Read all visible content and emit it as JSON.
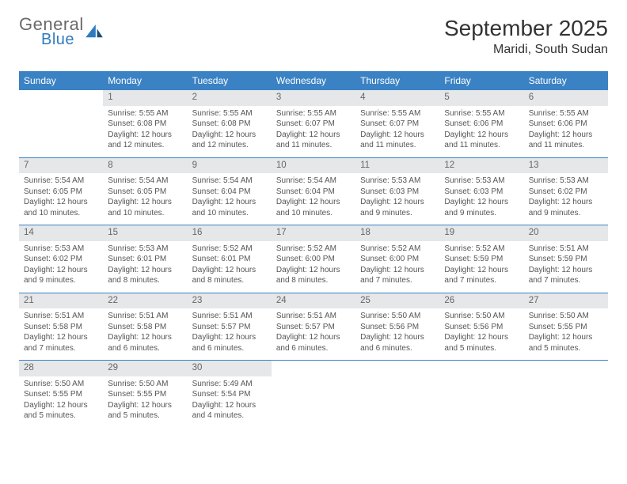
{
  "brand": {
    "line1": "General",
    "line2": "Blue",
    "color1": "#6a6a6a",
    "color2": "#2f7bbf"
  },
  "title": "September 2025",
  "location": "Maridi, South Sudan",
  "colors": {
    "header_bg": "#3b82c4",
    "header_fg": "#ffffff",
    "daynum_bg": "#e5e7e9",
    "rule": "#3b82c4",
    "text": "#555555",
    "page_bg": "#ffffff"
  },
  "typography": {
    "body_pt": 10,
    "title_pt": 28,
    "location_pt": 16,
    "dow_pt": 12
  },
  "layout": {
    "cols": 7,
    "rows": 5,
    "col_width_pct": 14.28
  },
  "dow": [
    "Sunday",
    "Monday",
    "Tuesday",
    "Wednesday",
    "Thursday",
    "Friday",
    "Saturday"
  ],
  "weeks": [
    [
      {
        "n": "",
        "empty": true
      },
      {
        "n": "1",
        "sr": "Sunrise: 5:55 AM",
        "ss": "Sunset: 6:08 PM",
        "dl": "Daylight: 12 hours and 12 minutes."
      },
      {
        "n": "2",
        "sr": "Sunrise: 5:55 AM",
        "ss": "Sunset: 6:08 PM",
        "dl": "Daylight: 12 hours and 12 minutes."
      },
      {
        "n": "3",
        "sr": "Sunrise: 5:55 AM",
        "ss": "Sunset: 6:07 PM",
        "dl": "Daylight: 12 hours and 11 minutes."
      },
      {
        "n": "4",
        "sr": "Sunrise: 5:55 AM",
        "ss": "Sunset: 6:07 PM",
        "dl": "Daylight: 12 hours and 11 minutes."
      },
      {
        "n": "5",
        "sr": "Sunrise: 5:55 AM",
        "ss": "Sunset: 6:06 PM",
        "dl": "Daylight: 12 hours and 11 minutes."
      },
      {
        "n": "6",
        "sr": "Sunrise: 5:55 AM",
        "ss": "Sunset: 6:06 PM",
        "dl": "Daylight: 12 hours and 11 minutes."
      }
    ],
    [
      {
        "n": "7",
        "sr": "Sunrise: 5:54 AM",
        "ss": "Sunset: 6:05 PM",
        "dl": "Daylight: 12 hours and 10 minutes."
      },
      {
        "n": "8",
        "sr": "Sunrise: 5:54 AM",
        "ss": "Sunset: 6:05 PM",
        "dl": "Daylight: 12 hours and 10 minutes."
      },
      {
        "n": "9",
        "sr": "Sunrise: 5:54 AM",
        "ss": "Sunset: 6:04 PM",
        "dl": "Daylight: 12 hours and 10 minutes."
      },
      {
        "n": "10",
        "sr": "Sunrise: 5:54 AM",
        "ss": "Sunset: 6:04 PM",
        "dl": "Daylight: 12 hours and 10 minutes."
      },
      {
        "n": "11",
        "sr": "Sunrise: 5:53 AM",
        "ss": "Sunset: 6:03 PM",
        "dl": "Daylight: 12 hours and 9 minutes."
      },
      {
        "n": "12",
        "sr": "Sunrise: 5:53 AM",
        "ss": "Sunset: 6:03 PM",
        "dl": "Daylight: 12 hours and 9 minutes."
      },
      {
        "n": "13",
        "sr": "Sunrise: 5:53 AM",
        "ss": "Sunset: 6:02 PM",
        "dl": "Daylight: 12 hours and 9 minutes."
      }
    ],
    [
      {
        "n": "14",
        "sr": "Sunrise: 5:53 AM",
        "ss": "Sunset: 6:02 PM",
        "dl": "Daylight: 12 hours and 9 minutes."
      },
      {
        "n": "15",
        "sr": "Sunrise: 5:53 AM",
        "ss": "Sunset: 6:01 PM",
        "dl": "Daylight: 12 hours and 8 minutes."
      },
      {
        "n": "16",
        "sr": "Sunrise: 5:52 AM",
        "ss": "Sunset: 6:01 PM",
        "dl": "Daylight: 12 hours and 8 minutes."
      },
      {
        "n": "17",
        "sr": "Sunrise: 5:52 AM",
        "ss": "Sunset: 6:00 PM",
        "dl": "Daylight: 12 hours and 8 minutes."
      },
      {
        "n": "18",
        "sr": "Sunrise: 5:52 AM",
        "ss": "Sunset: 6:00 PM",
        "dl": "Daylight: 12 hours and 7 minutes."
      },
      {
        "n": "19",
        "sr": "Sunrise: 5:52 AM",
        "ss": "Sunset: 5:59 PM",
        "dl": "Daylight: 12 hours and 7 minutes."
      },
      {
        "n": "20",
        "sr": "Sunrise: 5:51 AM",
        "ss": "Sunset: 5:59 PM",
        "dl": "Daylight: 12 hours and 7 minutes."
      }
    ],
    [
      {
        "n": "21",
        "sr": "Sunrise: 5:51 AM",
        "ss": "Sunset: 5:58 PM",
        "dl": "Daylight: 12 hours and 7 minutes."
      },
      {
        "n": "22",
        "sr": "Sunrise: 5:51 AM",
        "ss": "Sunset: 5:58 PM",
        "dl": "Daylight: 12 hours and 6 minutes."
      },
      {
        "n": "23",
        "sr": "Sunrise: 5:51 AM",
        "ss": "Sunset: 5:57 PM",
        "dl": "Daylight: 12 hours and 6 minutes."
      },
      {
        "n": "24",
        "sr": "Sunrise: 5:51 AM",
        "ss": "Sunset: 5:57 PM",
        "dl": "Daylight: 12 hours and 6 minutes."
      },
      {
        "n": "25",
        "sr": "Sunrise: 5:50 AM",
        "ss": "Sunset: 5:56 PM",
        "dl": "Daylight: 12 hours and 6 minutes."
      },
      {
        "n": "26",
        "sr": "Sunrise: 5:50 AM",
        "ss": "Sunset: 5:56 PM",
        "dl": "Daylight: 12 hours and 5 minutes."
      },
      {
        "n": "27",
        "sr": "Sunrise: 5:50 AM",
        "ss": "Sunset: 5:55 PM",
        "dl": "Daylight: 12 hours and 5 minutes."
      }
    ],
    [
      {
        "n": "28",
        "sr": "Sunrise: 5:50 AM",
        "ss": "Sunset: 5:55 PM",
        "dl": "Daylight: 12 hours and 5 minutes."
      },
      {
        "n": "29",
        "sr": "Sunrise: 5:50 AM",
        "ss": "Sunset: 5:55 PM",
        "dl": "Daylight: 12 hours and 5 minutes."
      },
      {
        "n": "30",
        "sr": "Sunrise: 5:49 AM",
        "ss": "Sunset: 5:54 PM",
        "dl": "Daylight: 12 hours and 4 minutes."
      },
      {
        "n": "",
        "empty": true
      },
      {
        "n": "",
        "empty": true
      },
      {
        "n": "",
        "empty": true
      },
      {
        "n": "",
        "empty": true
      }
    ]
  ]
}
